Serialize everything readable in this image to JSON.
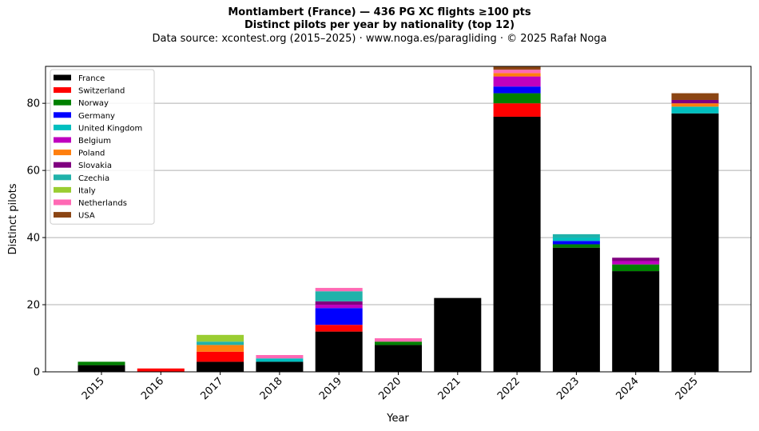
{
  "chart_data": {
    "type": "bar",
    "stacked": true,
    "title": "Montlambert (France)  —  436 PG XC flights ≥100 pts",
    "subtitle": "Distinct pilots per year by nationality (top 12)",
    "source": "Data source: xcontest.org (2015–2025)  ·  www.noga.es/paragliding  ·  © 2025 Rafał Noga",
    "xlabel": "Year",
    "ylabel": "Distinct pilots",
    "ylim": [
      0,
      91
    ],
    "yticks": [
      0,
      20,
      40,
      60,
      80
    ],
    "grid": "y",
    "legend_position": "top-left",
    "categories": [
      "2015",
      "2016",
      "2017",
      "2018",
      "2019",
      "2020",
      "2021",
      "2022",
      "2023",
      "2024",
      "2025"
    ],
    "series": [
      {
        "name": "France",
        "color": "#000000",
        "values": [
          2,
          0,
          3,
          3,
          12,
          8,
          22,
          76,
          37,
          30,
          77
        ]
      },
      {
        "name": "Switzerland",
        "color": "#ff0000",
        "values": [
          0,
          1,
          3,
          0,
          2,
          0,
          0,
          4,
          0,
          0,
          0
        ]
      },
      {
        "name": "Norway",
        "color": "#008000",
        "values": [
          1,
          0,
          0,
          0,
          0,
          1,
          0,
          3,
          1,
          2,
          0
        ]
      },
      {
        "name": "Germany",
        "color": "#0000ff",
        "values": [
          0,
          0,
          0,
          0,
          5,
          0,
          0,
          2,
          1,
          0,
          0
        ]
      },
      {
        "name": "United Kingdom",
        "color": "#00bfbf",
        "values": [
          0,
          0,
          0,
          1,
          0,
          0,
          0,
          0,
          1,
          0,
          2
        ]
      },
      {
        "name": "Belgium",
        "color": "#bf00bf",
        "values": [
          0,
          0,
          0,
          0,
          1,
          0,
          0,
          3,
          0,
          1,
          0
        ]
      },
      {
        "name": "Poland",
        "color": "#ff7f0e",
        "values": [
          0,
          0,
          2,
          0,
          0,
          0,
          0,
          1,
          0,
          0,
          1
        ]
      },
      {
        "name": "Slovakia",
        "color": "#800080",
        "values": [
          0,
          0,
          0,
          0,
          1,
          0,
          0,
          0,
          0,
          1,
          1
        ]
      },
      {
        "name": "Czechia",
        "color": "#20b2aa",
        "values": [
          0,
          0,
          1,
          0,
          3,
          0,
          0,
          0,
          1,
          0,
          0
        ]
      },
      {
        "name": "Italy",
        "color": "#9acd32",
        "values": [
          0,
          0,
          2,
          0,
          0,
          0,
          0,
          0,
          0,
          0,
          0
        ]
      },
      {
        "name": "Netherlands",
        "color": "#ff69b4",
        "values": [
          0,
          0,
          0,
          1,
          1,
          1,
          0,
          1,
          0,
          0,
          0
        ]
      },
      {
        "name": "USA",
        "color": "#8b4513",
        "values": [
          0,
          0,
          0,
          0,
          0,
          0,
          0,
          1,
          0,
          0,
          2
        ]
      }
    ]
  }
}
